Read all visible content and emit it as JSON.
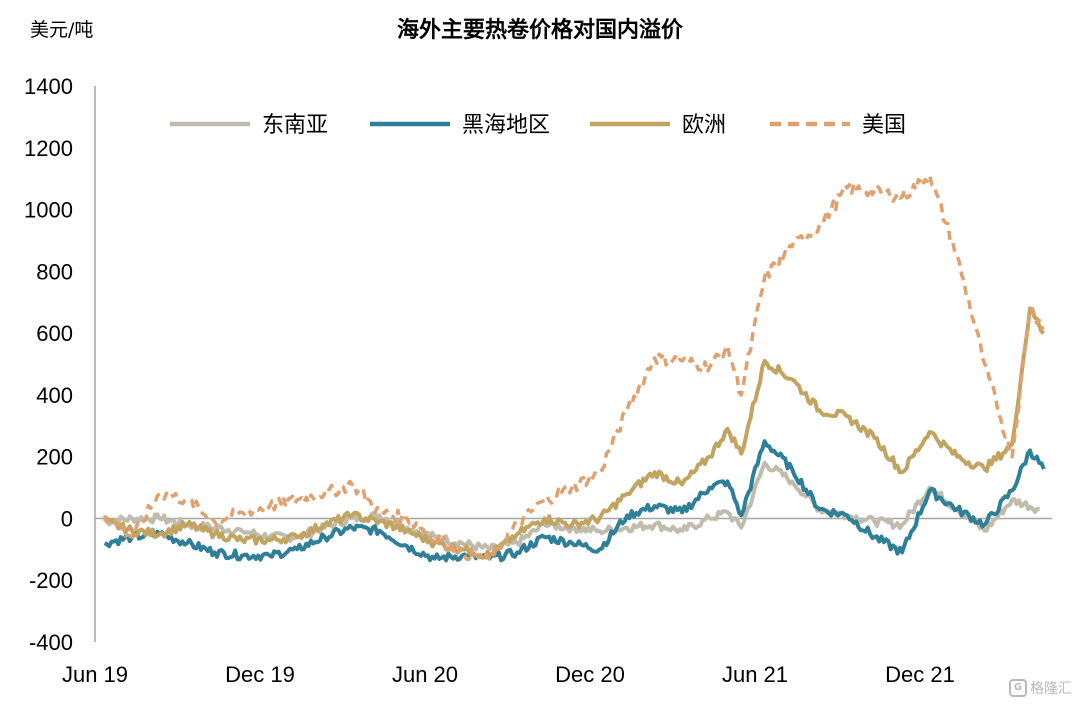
{
  "chart_data": {
    "type": "line",
    "title": "海外主要热卷价格对国内溢价",
    "unit_label": "美元/吨",
    "ylim": [
      -400,
      1400
    ],
    "yticks": [
      -400,
      -200,
      0,
      200,
      400,
      600,
      800,
      1000,
      1200,
      1400
    ],
    "x_tick_labels": [
      "Jun 19",
      "Dec 19",
      "Jun 20",
      "Dec 20",
      "Jun 21",
      "Dec 21"
    ],
    "xlim_months": [
      "2019-06",
      "2022-04"
    ],
    "legend_position": "top",
    "grid": false,
    "series": [
      {
        "name": "东南亚",
        "color": "#bfbcae",
        "dash": "solid",
        "points": [
          [
            "2019-06",
            -10
          ],
          [
            "2019-07",
            0
          ],
          [
            "2019-08",
            0
          ],
          [
            "2019-09",
            -20
          ],
          [
            "2019-10",
            -30
          ],
          [
            "2019-11",
            -40
          ],
          [
            "2019-12",
            -60
          ],
          [
            "2020-01",
            -60
          ],
          [
            "2020-02",
            -30
          ],
          [
            "2020-03",
            0
          ],
          [
            "2020-04",
            10
          ],
          [
            "2020-05",
            -30
          ],
          [
            "2020-06",
            -60
          ],
          [
            "2020-07",
            -80
          ],
          [
            "2020-08",
            -100
          ],
          [
            "2020-09",
            -80
          ],
          [
            "2020-10",
            -20
          ],
          [
            "2020-11",
            -30
          ],
          [
            "2020-12",
            -40
          ],
          [
            "2021-01",
            -30
          ],
          [
            "2021-02",
            -20
          ],
          [
            "2021-03",
            -40
          ],
          [
            "2021-04",
            0
          ],
          [
            "2021-05",
            20
          ],
          [
            "2021-05",
            -30
          ],
          [
            "2021-06",
            180
          ],
          [
            "2021-07",
            120
          ],
          [
            "2021-08",
            30
          ],
          [
            "2021-09",
            10
          ],
          [
            "2021-10",
            -10
          ],
          [
            "2021-11",
            -20
          ],
          [
            "2021-12",
            100
          ],
          [
            "2022-01",
            30
          ],
          [
            "2022-02",
            -40
          ],
          [
            "2022-03",
            60
          ],
          [
            "2022-04",
            30
          ]
        ]
      },
      {
        "name": "黑海地区",
        "color": "#2e7f97",
        "dash": "solid",
        "points": [
          [
            "2019-06",
            -80
          ],
          [
            "2019-07",
            -60
          ],
          [
            "2019-08",
            -50
          ],
          [
            "2019-09",
            -80
          ],
          [
            "2019-10",
            -110
          ],
          [
            "2019-11",
            -120
          ],
          [
            "2019-12",
            -120
          ],
          [
            "2020-01",
            -100
          ],
          [
            "2020-02",
            -60
          ],
          [
            "2020-03",
            -30
          ],
          [
            "2020-04",
            -40
          ],
          [
            "2020-05",
            -90
          ],
          [
            "2020-06",
            -130
          ],
          [
            "2020-07",
            -120
          ],
          [
            "2020-08",
            -130
          ],
          [
            "2020-09",
            -110
          ],
          [
            "2020-10",
            -60
          ],
          [
            "2020-11",
            -80
          ],
          [
            "2020-12",
            -100
          ],
          [
            "2021-01",
            10
          ],
          [
            "2021-02",
            40
          ],
          [
            "2021-03",
            20
          ],
          [
            "2021-04",
            100
          ],
          [
            "2021-05",
            120
          ],
          [
            "2021-05",
            10
          ],
          [
            "2021-06",
            250
          ],
          [
            "2021-07",
            160
          ],
          [
            "2021-08",
            30
          ],
          [
            "2021-09",
            10
          ],
          [
            "2021-10",
            -60
          ],
          [
            "2021-11",
            -110
          ],
          [
            "2021-12",
            90
          ],
          [
            "2022-01",
            30
          ],
          [
            "2022-02",
            -20
          ],
          [
            "2022-03",
            90
          ],
          [
            "2022-04",
            220
          ],
          [
            "2022-04",
            160
          ]
        ]
      },
      {
        "name": "欧洲",
        "color": "#c0a460",
        "dash": "solid",
        "points": [
          [
            "2019-06",
            -10
          ],
          [
            "2019-07",
            -40
          ],
          [
            "2019-08",
            -50
          ],
          [
            "2019-09",
            -20
          ],
          [
            "2019-10",
            -50
          ],
          [
            "2019-11",
            -70
          ],
          [
            "2019-12",
            -70
          ],
          [
            "2020-01",
            -60
          ],
          [
            "2020-02",
            -20
          ],
          [
            "2020-03",
            10
          ],
          [
            "2020-04",
            -10
          ],
          [
            "2020-05",
            -40
          ],
          [
            "2020-06",
            -80
          ],
          [
            "2020-07",
            -100
          ],
          [
            "2020-08",
            -120
          ],
          [
            "2020-09",
            -50
          ],
          [
            "2020-10",
            0
          ],
          [
            "2020-11",
            -20
          ],
          [
            "2020-12",
            0
          ],
          [
            "2021-01",
            80
          ],
          [
            "2021-02",
            150
          ],
          [
            "2021-03",
            110
          ],
          [
            "2021-04",
            200
          ],
          [
            "2021-05",
            290
          ],
          [
            "2021-05",
            210
          ],
          [
            "2021-06",
            510
          ],
          [
            "2021-07",
            450
          ],
          [
            "2021-08",
            350
          ],
          [
            "2021-09",
            330
          ],
          [
            "2021-10",
            260
          ],
          [
            "2021-11",
            150
          ],
          [
            "2021-12",
            280
          ],
          [
            "2022-01",
            200
          ],
          [
            "2022-02",
            160
          ],
          [
            "2022-03",
            240
          ],
          [
            "2022-04",
            680
          ],
          [
            "2022-04",
            600
          ]
        ]
      },
      {
        "name": "美国",
        "color": "#e0a170",
        "dash": "dashed",
        "points": [
          [
            "2019-06",
            10
          ],
          [
            "2019-07",
            -60
          ],
          [
            "2019-08",
            80
          ],
          [
            "2019-09",
            60
          ],
          [
            "2019-10",
            -10
          ],
          [
            "2019-11",
            20
          ],
          [
            "2019-12",
            40
          ],
          [
            "2020-01",
            60
          ],
          [
            "2020-02",
            80
          ],
          [
            "2020-03",
            110
          ],
          [
            "2020-04",
            20
          ],
          [
            "2020-05",
            0
          ],
          [
            "2020-06",
            -60
          ],
          [
            "2020-07",
            -110
          ],
          [
            "2020-08",
            -130
          ],
          [
            "2020-09",
            -20
          ],
          [
            "2020-10",
            60
          ],
          [
            "2020-11",
            100
          ],
          [
            "2020-12",
            150
          ],
          [
            "2021-01",
            350
          ],
          [
            "2021-02",
            520
          ],
          [
            "2021-03",
            510
          ],
          [
            "2021-04",
            490
          ],
          [
            "2021-05",
            560
          ],
          [
            "2021-05",
            400
          ],
          [
            "2021-06",
            780
          ],
          [
            "2021-07",
            880
          ],
          [
            "2021-08",
            950
          ],
          [
            "2021-09",
            1070
          ],
          [
            "2021-10",
            1060
          ],
          [
            "2021-11",
            1040
          ],
          [
            "2021-12",
            1110
          ],
          [
            "2022-01",
            850
          ],
          [
            "2022-02",
            500
          ],
          [
            "2022-03",
            200
          ],
          [
            "2022-04",
            680
          ],
          [
            "2022-04",
            620
          ]
        ]
      }
    ]
  },
  "watermark": {
    "text": "格隆汇",
    "logo": "G"
  }
}
